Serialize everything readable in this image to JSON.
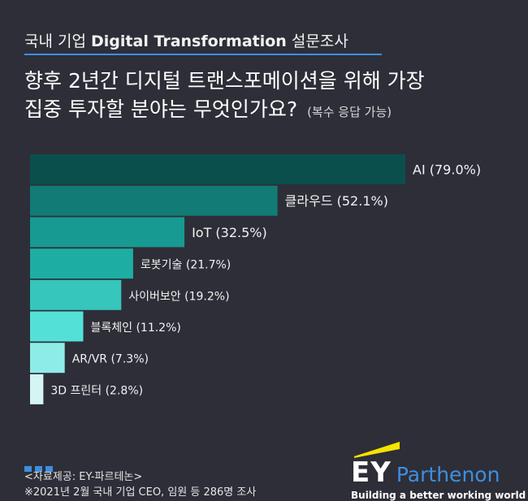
{
  "header": {
    "survey_prefix": "국내 기업",
    "survey_en": "Digital Transformation",
    "survey_suffix": "설문조사",
    "question_line1": "향후 2년간 디지털 트랜스포메이션을 위해 가장",
    "question_line2": "집중 투자할 분야는 무엇인가요?",
    "question_note": "(복수 응답 가능)"
  },
  "chart_data": {
    "type": "bar",
    "orientation": "horizontal",
    "unit": "%",
    "xlim": [
      0,
      79.0
    ],
    "grid": false,
    "categories": [
      "AI",
      "클라우드",
      "IoT",
      "로봇기술",
      "사이버보안",
      "블록체인",
      "AR/VR",
      "3D 프린터"
    ],
    "values": [
      79.0,
      52.1,
      32.5,
      21.7,
      19.2,
      11.2,
      7.3,
      2.8
    ],
    "labels": [
      "AI (79.0%)",
      "클라우드 (52.1%)",
      "IoT (32.5%)",
      "로봇기술 (21.7%)",
      "사이버보안 (19.2%)",
      "블록체인 (11.2%)",
      "AR/VR (7.3%)",
      "3D 프린터 (2.8%)"
    ],
    "colors": [
      "#0b4f4c",
      "#127b75",
      "#169a92",
      "#1eada3",
      "#36c6bc",
      "#53e1d7",
      "#8eece6",
      "#d4f5f3"
    ]
  },
  "footer": {
    "source": "<자료제공: EY-파르테논>",
    "note": "※2021년 2월 국내 기업 CEO, 임원 등 286명 조사",
    "logo_ey": "EY",
    "logo_brand": "Parthenon",
    "tagline": "Building a better working world",
    "accent_color": "#f5e400"
  }
}
